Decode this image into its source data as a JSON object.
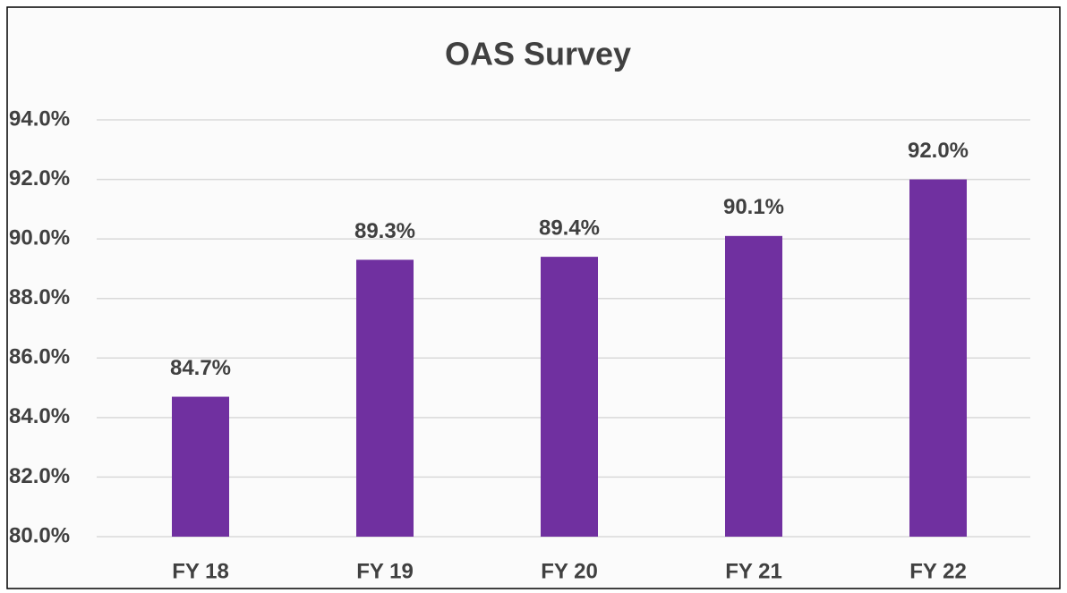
{
  "chart_data": {
    "type": "bar",
    "title": "OAS Survey",
    "categories": [
      "FY 18",
      "FY 19",
      "FY 20",
      "FY 21",
      "FY 22"
    ],
    "values": [
      84.7,
      89.3,
      89.4,
      90.1,
      92.0
    ],
    "value_labels": [
      "84.7%",
      "89.3%",
      "89.4%",
      "90.1%",
      "92.0%"
    ],
    "color": "#7030a0",
    "ylim": [
      80,
      94
    ],
    "yticks": [
      {
        "value": 80,
        "label": "80.0%"
      },
      {
        "value": 82,
        "label": "82.0%"
      },
      {
        "value": 84,
        "label": "84.0%"
      },
      {
        "value": 86,
        "label": "86.0%"
      },
      {
        "value": 88,
        "label": "88.0%"
      },
      {
        "value": 90,
        "label": "90.0%"
      },
      {
        "value": 92,
        "label": "92.0%"
      },
      {
        "value": 94,
        "label": "94.0%"
      }
    ],
    "grid": true
  }
}
